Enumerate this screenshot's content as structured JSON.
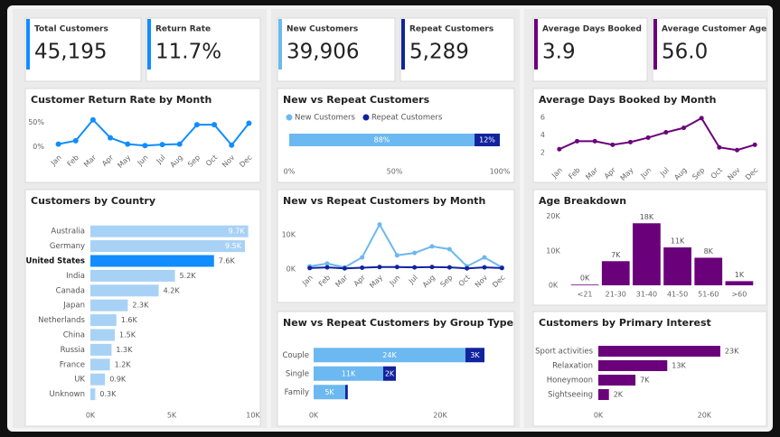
{
  "cards": [
    {
      "title": "Total Customers",
      "value": "45,195",
      "color": "#118dff"
    },
    {
      "title": "Return Rate",
      "value": "11.7%",
      "color": "#118dff"
    },
    {
      "title": "New Customers",
      "value": "39,906",
      "color": "#6cb8f0"
    },
    {
      "title": "Repeat Customers",
      "value": "5,289",
      "color": "#12239e"
    },
    {
      "title": "Average Days Booked",
      "value": "3.9",
      "color": "#6b007b"
    },
    {
      "title": "Average Customer Age",
      "value": "56.0",
      "color": "#6b007b"
    }
  ],
  "chart_data": [
    {
      "type": "line",
      "title": "Customer Return Rate by Month",
      "categories": [
        "Jan",
        "Feb",
        "Mar",
        "Apr",
        "May",
        "Jun",
        "Jul",
        "Aug",
        "Sep",
        "Oct",
        "Nov",
        "Dec"
      ],
      "series": [
        {
          "color": "#118dff",
          "values": [
            5,
            12,
            55,
            18,
            5,
            2,
            4,
            5,
            45,
            45,
            3,
            48
          ]
        }
      ],
      "ylim": [
        -5,
        60
      ],
      "yticks": [
        {
          "value": 0,
          "label": "0%"
        },
        {
          "value": 50,
          "label": "50%"
        }
      ]
    },
    {
      "type": "stacked_hbar",
      "title": "New vs Repeat Customers",
      "legend": "top",
      "categories": [
        null
      ],
      "series": [
        {
          "name": "New Customers",
          "color": "#6cb8f0",
          "values": [
            88
          ],
          "value_labels": [
            "88%"
          ]
        },
        {
          "name": "Repeat Customers",
          "color": "#12239e",
          "values": [
            12
          ],
          "value_labels": [
            "12%"
          ]
        }
      ],
      "xlim": [
        0,
        100
      ],
      "xticks": [
        {
          "value": 0,
          "label": "0%"
        },
        {
          "value": 50,
          "label": "50%"
        },
        {
          "value": 100,
          "label": "100%"
        }
      ]
    },
    {
      "type": "hbar",
      "title": "Customers by Country",
      "categories": [
        "Australia",
        "Germany",
        "United States",
        "India",
        "Canada",
        "Japan",
        "Netherlands",
        "China",
        "Russia",
        "France",
        "UK",
        "Unknown"
      ],
      "values": [
        9700,
        9500,
        7600,
        5200,
        4200,
        2300,
        1600,
        1500,
        1300,
        1200,
        900,
        300
      ],
      "value_labels": [
        "9.7K",
        "9.5K",
        "7.6K",
        "5.2K",
        "4.2K",
        "2.3K",
        "1.6K",
        "1.5K",
        "1.3K",
        "1.2K",
        "0.9K",
        "0.3K"
      ],
      "color": "#a8d2f5",
      "colors": [
        "#a8d2f5",
        "#a8d2f5",
        "#118dff",
        "#a8d2f5",
        "#a8d2f5",
        "#a8d2f5",
        "#a8d2f5",
        "#a8d2f5",
        "#a8d2f5",
        "#a8d2f5",
        "#a8d2f5",
        "#a8d2f5"
      ],
      "xlim": [
        0,
        10000
      ],
      "xticks": [
        {
          "value": 0,
          "label": "0K"
        },
        {
          "value": 5000,
          "label": "5K"
        },
        {
          "value": 10000,
          "label": "10K"
        }
      ]
    },
    {
      "type": "line",
      "title": "New vs Repeat Customers by Month",
      "categories": [
        "Jan",
        "Feb",
        "Mar",
        "Apr",
        "May",
        "Jun",
        "Jul",
        "Aug",
        "Sep",
        "Oct",
        "Nov",
        "Dec"
      ],
      "series": [
        {
          "name": "New Customers",
          "color": "#6cb8f0",
          "values": [
            800,
            1600,
            500,
            3400,
            13000,
            4000,
            4700,
            6600,
            5800,
            800,
            3400,
            500
          ]
        },
        {
          "name": "Repeat Customers",
          "color": "#12239e",
          "values": [
            300,
            500,
            200,
            400,
            600,
            600,
            500,
            600,
            500,
            200,
            500,
            300
          ]
        }
      ],
      "ylim": [
        0,
        15000
      ],
      "yticks": [
        {
          "value": 0,
          "label": "0K"
        },
        {
          "value": 10000,
          "label": "10K"
        }
      ]
    },
    {
      "type": "stacked_hbar",
      "title": "New vs Repeat Customers by Group Type",
      "categories": [
        "Couple",
        "Single",
        "Family"
      ],
      "series": [
        {
          "name": "New Customers",
          "color": "#6cb8f0",
          "values": [
            24000,
            11000,
            5000
          ],
          "value_labels": [
            "24K",
            "11K",
            "5K"
          ]
        },
        {
          "name": "Repeat Customers",
          "color": "#12239e",
          "values": [
            3000,
            2000,
            400
          ],
          "value_labels": [
            "3K",
            "2K",
            null
          ]
        }
      ],
      "xlim": [
        0,
        30000
      ],
      "xticks": [
        {
          "value": 0,
          "label": "0K"
        },
        {
          "value": 20000,
          "label": "20K"
        }
      ]
    },
    {
      "type": "line",
      "title": "Average Days Booked by Month",
      "categories": [
        "Jan",
        "Feb",
        "Mar",
        "Apr",
        "May",
        "Jun",
        "Jul",
        "Aug",
        "Sep",
        "Oct",
        "Nov",
        "Dec"
      ],
      "series": [
        {
          "color": "#6b007b",
          "values": [
            2.4,
            3.3,
            3.3,
            2.9,
            3.2,
            3.7,
            4.3,
            4.8,
            5.9,
            2.6,
            2.3,
            2.9
          ]
        }
      ],
      "ylim": [
        1,
        7
      ],
      "yticks": [
        2,
        4,
        6
      ]
    },
    {
      "type": "bar",
      "title": "Age Breakdown",
      "categories": [
        "<21",
        "21-30",
        "31-40",
        "41-50",
        "51-60",
        ">60"
      ],
      "values": [
        200,
        7000,
        18000,
        11000,
        8000,
        1200
      ],
      "value_labels": [
        "0K",
        "7K",
        "18K",
        "11K",
        "8K",
        "1K"
      ],
      "color": "#6b007b",
      "ylim": [
        0,
        22000
      ],
      "yticks": [
        {
          "value": 0,
          "label": "0K"
        },
        {
          "value": 10000,
          "label": "10K"
        },
        {
          "value": 20000,
          "label": "20K"
        }
      ]
    },
    {
      "type": "hbar",
      "title": "Customers by Primary Interest",
      "categories": [
        "Sport activities",
        "Relaxation",
        "Honeymoon",
        "Sightseeing"
      ],
      "values": [
        23000,
        13000,
        7000,
        2000
      ],
      "value_labels": [
        "23K",
        "13K",
        "7K",
        "2K"
      ],
      "color": "#6b007b",
      "xlim": [
        0,
        30000
      ],
      "xticks": [
        {
          "value": 0,
          "label": "0K"
        },
        {
          "value": 20000,
          "label": "20K"
        }
      ]
    }
  ]
}
